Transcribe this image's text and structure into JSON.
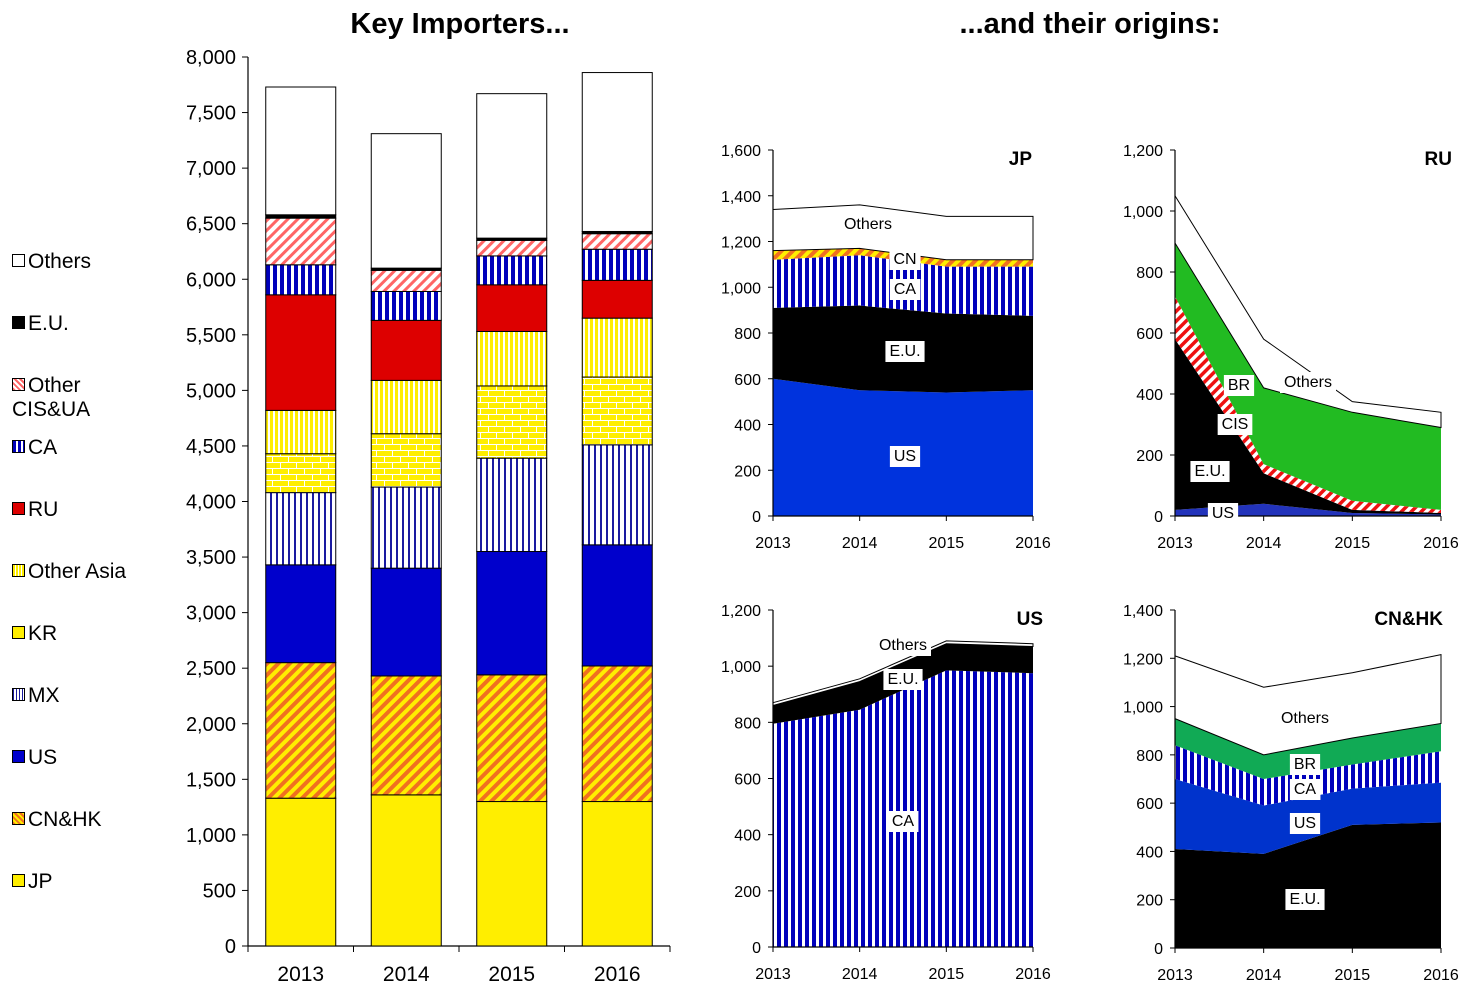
{
  "titles": {
    "left": "Key Importers...",
    "right": "...and their origins:"
  },
  "colors": {
    "JP": "#ffee00",
    "CN&HK": "#f07020",
    "US": "#0000cc",
    "MX": "#1a1aa0",
    "KR": "#ffee00",
    "Other Asia": "#ffee00",
    "RU": "#dd0000",
    "CA": "#0000bb",
    "Other CIS&UA": "#ff6666",
    "E.U.": "#000000",
    "Others": "#ffffff",
    "CIS": "#22bb22",
    "BR": "#ffffff",
    "CN": "#ff8800",
    "green": "#22bb22"
  },
  "legend": [
    {
      "label": "Others",
      "key": "Others"
    },
    {
      "label": "E.U.",
      "key": "E.U."
    },
    {
      "label": "Other",
      "label2": "CIS&UA",
      "key": "Other CIS&UA"
    },
    {
      "label": "CA",
      "key": "CA"
    },
    {
      "label": "RU",
      "key": "RU"
    },
    {
      "label": "Other Asia",
      "key": "Other Asia"
    },
    {
      "label": "KR",
      "key": "KR"
    },
    {
      "label": "MX",
      "key": "MX"
    },
    {
      "label": "US",
      "key": "US"
    },
    {
      "label": "CN&HK",
      "key": "CN&HK"
    },
    {
      "label": "JP",
      "key": "JP"
    }
  ],
  "chart_data": [
    {
      "type": "bar",
      "stacked": true,
      "title": "Key Importers...",
      "categories": [
        "2013",
        "2014",
        "2015",
        "2016"
      ],
      "ylim": [
        0,
        8000
      ],
      "yticks": [
        0,
        500,
        1000,
        1500,
        2000,
        2500,
        3000,
        3500,
        4000,
        4500,
        5000,
        5500,
        6000,
        6500,
        7000,
        7500,
        8000
      ],
      "ytick_labels": [
        "0",
        "500",
        "1,000",
        "1,500",
        "2,000",
        "2,500",
        "3,000",
        "3,500",
        "4,000",
        "4,500",
        "5,000",
        "5,500",
        "6,000",
        "6,500",
        "7,000",
        "7,500",
        "8,000"
      ],
      "series": [
        {
          "name": "JP",
          "values": [
            1330,
            1360,
            1300,
            1300
          ]
        },
        {
          "name": "CN&HK",
          "values": [
            1220,
            1070,
            1140,
            1220
          ]
        },
        {
          "name": "US",
          "values": [
            880,
            970,
            1110,
            1090
          ]
        },
        {
          "name": "MX",
          "values": [
            650,
            730,
            840,
            900
          ]
        },
        {
          "name": "KR",
          "values": [
            350,
            480,
            650,
            610
          ]
        },
        {
          "name": "Other Asia",
          "values": [
            390,
            480,
            490,
            530
          ]
        },
        {
          "name": "RU",
          "values": [
            1040,
            540,
            420,
            340
          ]
        },
        {
          "name": "CA",
          "values": [
            270,
            260,
            260,
            280
          ]
        },
        {
          "name": "Other CIS&UA",
          "values": [
            420,
            190,
            140,
            140
          ]
        },
        {
          "name": "E.U.",
          "values": [
            30,
            20,
            20,
            20
          ]
        },
        {
          "name": "Others",
          "values": [
            1150,
            1210,
            1300,
            1430
          ]
        }
      ]
    },
    {
      "type": "area",
      "stacked": true,
      "title": "JP",
      "x": [
        "2013",
        "2014",
        "2015",
        "2016"
      ],
      "ylim": [
        0,
        1600
      ],
      "yticks": [
        0,
        200,
        400,
        600,
        800,
        1000,
        1200,
        1400,
        1600
      ],
      "ytick_labels": [
        "0",
        "200",
        "400",
        "600",
        "800",
        "1,000",
        "1,200",
        "1,400",
        "1,600"
      ],
      "series": [
        {
          "name": "US",
          "values": [
            600,
            550,
            540,
            550
          ]
        },
        {
          "name": "E.U.",
          "values": [
            310,
            370,
            345,
            325
          ]
        },
        {
          "name": "CA",
          "values": [
            210,
            220,
            205,
            215
          ]
        },
        {
          "name": "CN",
          "values": [
            40,
            30,
            30,
            30
          ]
        },
        {
          "name": "Others",
          "values": [
            180,
            190,
            190,
            190
          ]
        }
      ],
      "area_labels": [
        "US",
        "E.U.",
        "CA",
        "CN",
        "Others"
      ]
    },
    {
      "type": "area",
      "stacked": true,
      "title": "RU",
      "x": [
        "2013",
        "2014",
        "2015",
        "2016"
      ],
      "ylim": [
        0,
        1200
      ],
      "yticks": [
        0,
        200,
        400,
        600,
        800,
        1000,
        1200
      ],
      "ytick_labels": [
        "0",
        "200",
        "400",
        "600",
        "800",
        "1,000",
        "1,200"
      ],
      "series": [
        {
          "name": "US",
          "values": [
            20,
            40,
            10,
            5
          ]
        },
        {
          "name": "E.U.",
          "values": [
            560,
            100,
            10,
            5
          ]
        },
        {
          "name": "CIS",
          "values": [
            140,
            30,
            30,
            10
          ]
        },
        {
          "name": "BR",
          "values": [
            175,
            250,
            290,
            270
          ]
        },
        {
          "name": "Others",
          "values": [
            155,
            160,
            35,
            50
          ]
        }
      ],
      "area_labels": [
        "US",
        "E.U.",
        "CIS",
        "BR",
        "Others"
      ]
    },
    {
      "type": "area",
      "stacked": true,
      "title": "US",
      "x": [
        "2013",
        "2014",
        "2015",
        "2016"
      ],
      "ylim": [
        0,
        1200
      ],
      "yticks": [
        0,
        200,
        400,
        600,
        800,
        1000,
        1200
      ],
      "ytick_labels": [
        "0",
        "200",
        "400",
        "600",
        "800",
        "1,000",
        "1,200"
      ],
      "series": [
        {
          "name": "CA",
          "values": [
            795,
            845,
            985,
            975
          ]
        },
        {
          "name": "E.U.",
          "values": [
            65,
            100,
            95,
            95
          ]
        },
        {
          "name": "Others",
          "values": [
            10,
            10,
            10,
            10
          ]
        }
      ],
      "area_labels": [
        "CA",
        "E.U.",
        "Others"
      ]
    },
    {
      "type": "area",
      "stacked": true,
      "title": "CN&HK",
      "x": [
        "2013",
        "2014",
        "2015",
        "2016"
      ],
      "ylim": [
        0,
        1400
      ],
      "yticks": [
        0,
        200,
        400,
        600,
        800,
        1000,
        1200,
        1400
      ],
      "ytick_labels": [
        "0",
        "200",
        "400",
        "600",
        "800",
        "1,000",
        "1,200",
        "1,400"
      ],
      "series": [
        {
          "name": "E.U.",
          "values": [
            410,
            390,
            510,
            520
          ]
        },
        {
          "name": "US",
          "values": [
            290,
            200,
            150,
            165
          ]
        },
        {
          "name": "CA",
          "values": [
            140,
            110,
            100,
            130
          ]
        },
        {
          "name": "BR",
          "values": [
            110,
            100,
            110,
            115
          ]
        },
        {
          "name": "Others",
          "values": [
            260,
            280,
            270,
            285
          ]
        }
      ],
      "area_labels": [
        "E.U.",
        "US",
        "CA",
        "BR",
        "Others"
      ]
    }
  ]
}
